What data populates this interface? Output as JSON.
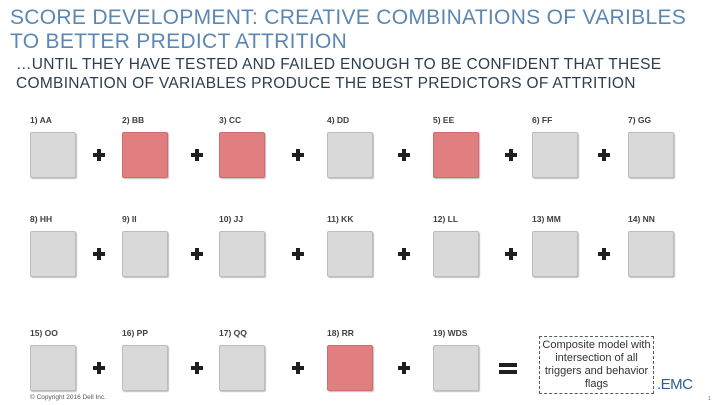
{
  "slide": {
    "title": "SCORE DEVELOPMENT: CREATIVE COMBINATIONS OF VARIBLES TO BETTER PREDICT ATTRITION",
    "subtitle": "…UNTIL THEY HAVE TESTED AND FAILED ENOUGH TO BE CONFIDENT THAT THESE COMBINATION OF VARIABLES PRODUCE THE BEST PREDICTORS OF ATTRITION",
    "composite_text": "Composite model with intersection of all triggers and behavior flags",
    "copyright": "© Copyright 2016 Dell Inc.",
    "logo": ".EMC",
    "page_number": "1",
    "operator_symbol": "plus-icon",
    "result_symbol": "equals-icon"
  },
  "colors": {
    "title": "#5b87b3",
    "box_default": "#d9d9d9",
    "box_active": "#e07e80"
  },
  "variables": [
    {
      "label": "1) AA",
      "active": false
    },
    {
      "label": "2) BB",
      "active": true
    },
    {
      "label": "3) CC",
      "active": true
    },
    {
      "label": "4) DD",
      "active": false
    },
    {
      "label": "5) EE",
      "active": true
    },
    {
      "label": "6) FF",
      "active": false
    },
    {
      "label": "7) GG",
      "active": false
    },
    {
      "label": "8) HH",
      "active": false
    },
    {
      "label": "9) II",
      "active": false
    },
    {
      "label": "10) JJ",
      "active": false
    },
    {
      "label": "11) KK",
      "active": false
    },
    {
      "label": "12) LL",
      "active": false
    },
    {
      "label": "13) MM",
      "active": false
    },
    {
      "label": "14) NN",
      "active": false
    },
    {
      "label": "15) OO",
      "active": false
    },
    {
      "label": "16) PP",
      "active": false
    },
    {
      "label": "17) QQ",
      "active": false
    },
    {
      "label": "18) RR",
      "active": true
    },
    {
      "label": "19) WDS",
      "active": false
    }
  ]
}
